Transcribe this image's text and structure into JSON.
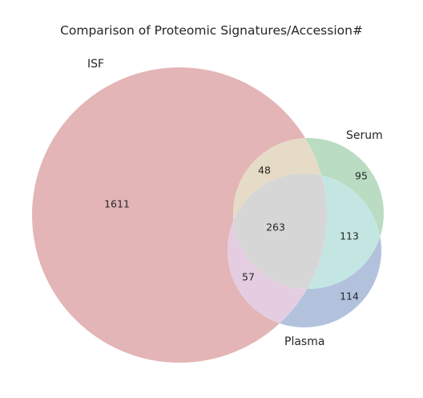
{
  "chart_data": {
    "type": "venn",
    "title": "Comparison of Proteomic Signatures/Accession#",
    "sets": [
      {
        "name": "ISF",
        "color": "#db9ea0"
      },
      {
        "name": "Serum",
        "color": "#a6d4b2"
      },
      {
        "name": "Plasma",
        "color": "#9fb2d4"
      }
    ],
    "regions": [
      {
        "sets": [
          "ISF"
        ],
        "value": 1611,
        "color": "#e3b5b6"
      },
      {
        "sets": [
          "Serum"
        ],
        "value": 95,
        "color": "#b9dcc2"
      },
      {
        "sets": [
          "Plasma"
        ],
        "value": 114,
        "color": "#b2c2dd"
      },
      {
        "sets": [
          "ISF",
          "Serum"
        ],
        "value": 48,
        "color": "#e6dbc6"
      },
      {
        "sets": [
          "ISF",
          "Plasma"
        ],
        "value": 57,
        "color": "#e4cde0"
      },
      {
        "sets": [
          "Serum",
          "Plasma"
        ],
        "value": 113,
        "color": "#c4e6e3"
      },
      {
        "sets": [
          "ISF",
          "Serum",
          "Plasma"
        ],
        "value": 263,
        "color": "#d6d6d6"
      }
    ]
  }
}
